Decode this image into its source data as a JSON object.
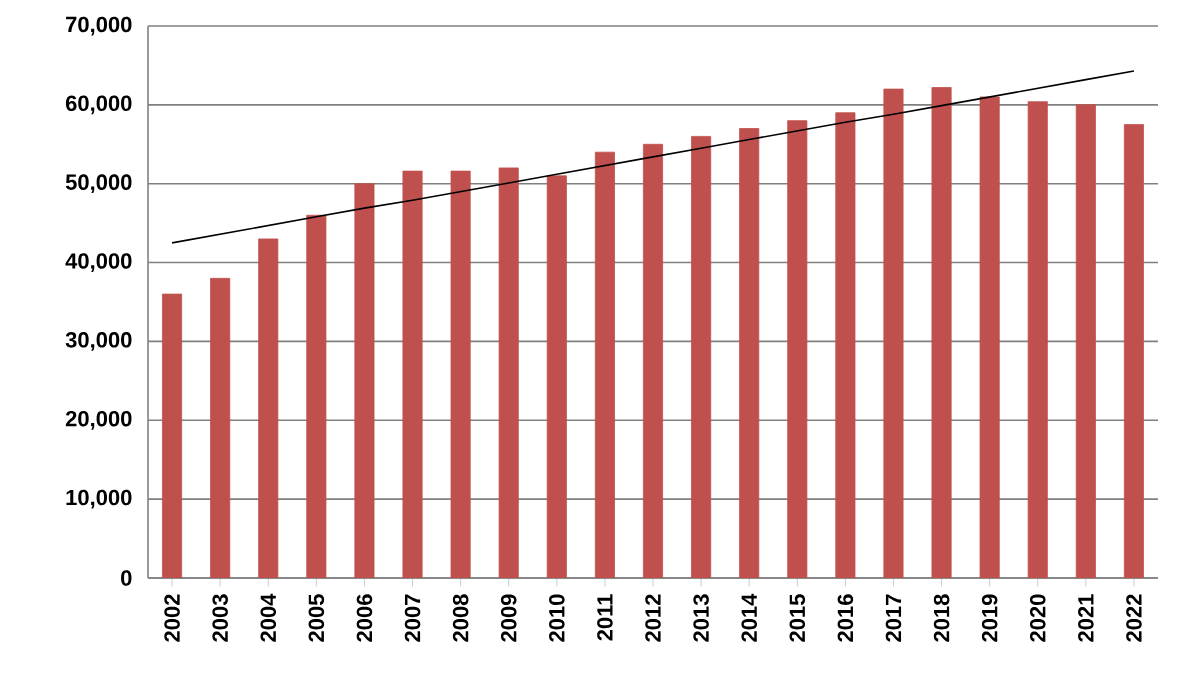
{
  "chart_data": {
    "type": "bar",
    "categories": [
      "2002",
      "2003",
      "2004",
      "2005",
      "2006",
      "2007",
      "2008",
      "2009",
      "2010",
      "2011",
      "2012",
      "2013",
      "2014",
      "2015",
      "2016",
      "2017",
      "2018",
      "2019",
      "2020",
      "2021",
      "2022"
    ],
    "series": [
      {
        "color": "#c0504d",
        "values": [
          36000,
          38000,
          43000,
          46000,
          50000,
          51600,
          51600,
          52000,
          51000,
          54000,
          55000,
          56000,
          57000,
          58000,
          59000,
          62000,
          62200,
          61000,
          60400,
          60000,
          57500
        ]
      },
      {
        "type": "line",
        "color": "#000000",
        "values": [
          42500,
          43600,
          44700,
          45800,
          46900,
          47900,
          49000,
          50100,
          51200,
          52300,
          53400,
          54500,
          55600,
          56700,
          57800,
          58800,
          59900,
          61000,
          62100,
          63200,
          64300
        ]
      }
    ],
    "ylim": [
      0,
      70000
    ],
    "yticks": [
      {
        "value": 0,
        "label": "0"
      },
      {
        "value": 10000,
        "label": "10,000"
      },
      {
        "value": 20000,
        "label": "20,000"
      },
      {
        "value": 30000,
        "label": "30,000"
      },
      {
        "value": 40000,
        "label": "40,000"
      },
      {
        "value": 50000,
        "label": "50,000"
      },
      {
        "value": 60000,
        "label": "60,000"
      },
      {
        "value": 70000,
        "label": "70,000"
      }
    ],
    "grid": "y"
  }
}
